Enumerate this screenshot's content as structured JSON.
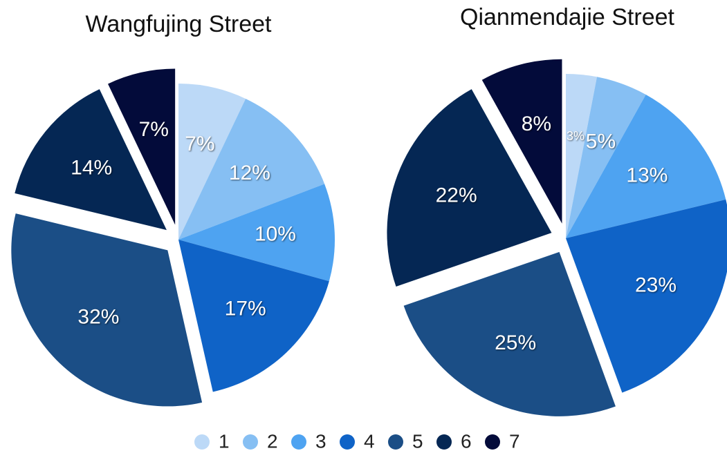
{
  "chart_data": [
    {
      "type": "pie",
      "title": "Wangfujing Street",
      "categories": [
        "1",
        "2",
        "3",
        "4",
        "5",
        "6",
        "7"
      ],
      "values": [
        7,
        12,
        10,
        17,
        32,
        14,
        7
      ],
      "value_labels": [
        "7%",
        "12%",
        "10%",
        "17%",
        "32%",
        "14%",
        "7%"
      ],
      "colors": [
        "#bcd9f7",
        "#86bff3",
        "#4ea3f1",
        "#0f63c7",
        "#1b4e86",
        "#052754",
        "#030b3a"
      ],
      "exploded": [
        false,
        false,
        false,
        false,
        true,
        true,
        true
      ]
    },
    {
      "type": "pie",
      "title": "Qianmendajie Street",
      "categories": [
        "1",
        "2",
        "3",
        "4",
        "5",
        "6",
        "7"
      ],
      "values": [
        3,
        5,
        13,
        23,
        25,
        22,
        8
      ],
      "value_labels": [
        "3%",
        "5%",
        "13%",
        "23%",
        "25%",
        "22%",
        "8%"
      ],
      "colors": [
        "#bcd9f7",
        "#86bff3",
        "#4ea3f1",
        "#0f63c7",
        "#1b4e86",
        "#052754",
        "#030b3a"
      ],
      "exploded": [
        false,
        false,
        false,
        false,
        true,
        true,
        true
      ]
    }
  ]
}
